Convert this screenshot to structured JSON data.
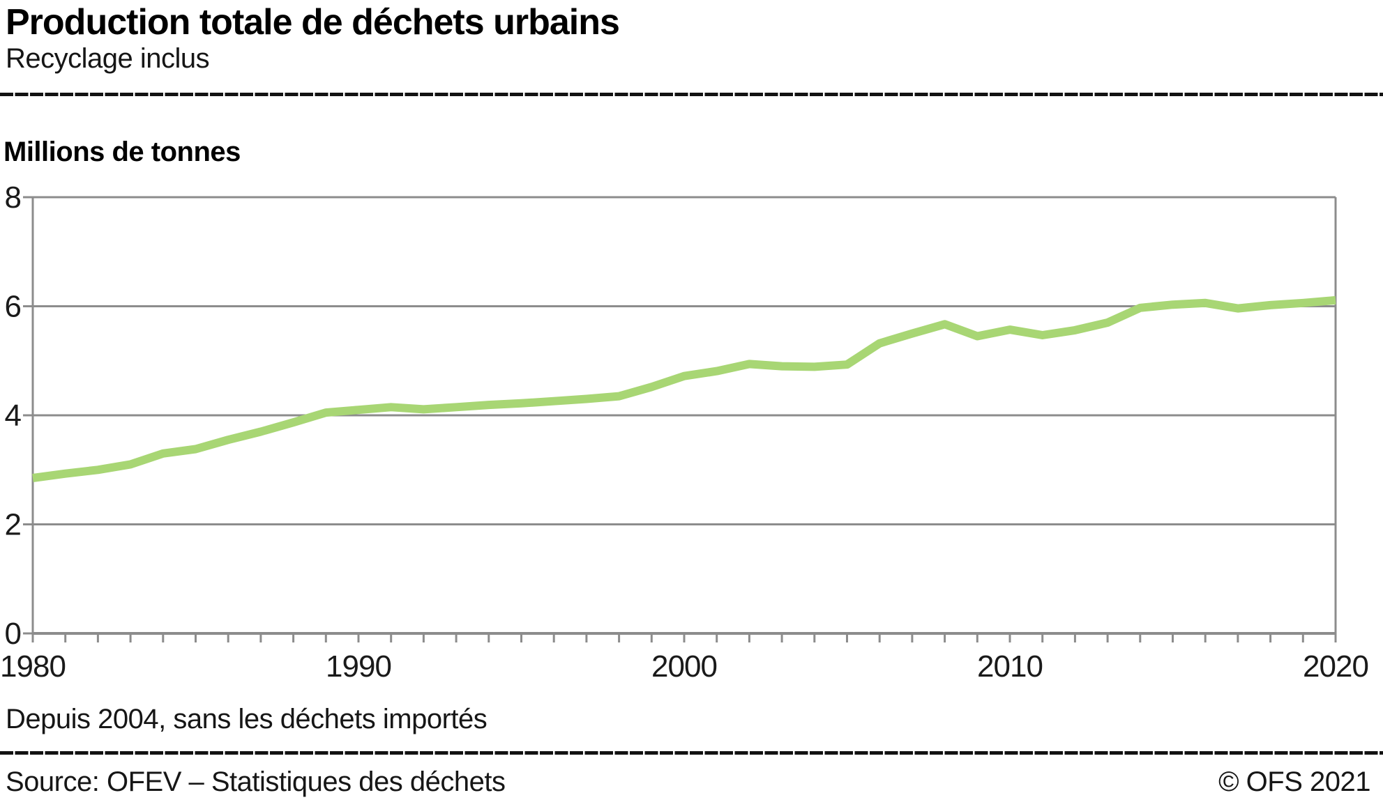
{
  "header": {
    "title": "Production totale de déchets urbains",
    "subtitle": "Recyclage inclus"
  },
  "chart": {
    "unit_label": "Millions de tonnes"
  },
  "chart_data": {
    "type": "line",
    "title": "Production totale de déchets urbains",
    "subtitle": "Recyclage inclus",
    "xlabel": "",
    "ylabel": "Millions de tonnes",
    "x": [
      1980,
      1981,
      1982,
      1983,
      1984,
      1985,
      1986,
      1987,
      1988,
      1989,
      1990,
      1991,
      1992,
      1993,
      1994,
      1995,
      1996,
      1997,
      1998,
      1999,
      2000,
      2001,
      2002,
      2003,
      2004,
      2005,
      2006,
      2007,
      2008,
      2009,
      2010,
      2011,
      2012,
      2013,
      2014,
      2015,
      2016,
      2017,
      2018,
      2019,
      2020
    ],
    "series": [
      {
        "name": "Production totale de déchets urbains (recyclage inclus)",
        "color": "#a8d674",
        "values": [
          2.85,
          2.93,
          3.0,
          3.1,
          3.3,
          3.38,
          3.55,
          3.7,
          3.87,
          4.05,
          4.1,
          4.15,
          4.11,
          4.15,
          4.19,
          4.22,
          4.26,
          4.3,
          4.35,
          4.52,
          4.72,
          4.81,
          4.94,
          4.9,
          4.89,
          4.93,
          5.32,
          5.5,
          5.67,
          5.45,
          5.57,
          5.47,
          5.56,
          5.7,
          5.97,
          6.03,
          6.06,
          5.96,
          6.02,
          6.06,
          6.11
        ]
      }
    ],
    "ylim": [
      0,
      8
    ],
    "yticks": [
      0,
      2,
      4,
      6,
      8
    ],
    "xticks": [
      1980,
      1990,
      2000,
      2010,
      2020
    ],
    "grid": true,
    "legend": "none",
    "grid_color": "#8c8c8c",
    "annotation": "Depuis 2004, sans les déchets importés"
  },
  "footer": {
    "footnote": "Depuis 2004, sans les déchets importés",
    "source": "Source: OFEV – Statistiques des déchets",
    "copyright": "© OFS 2021"
  }
}
